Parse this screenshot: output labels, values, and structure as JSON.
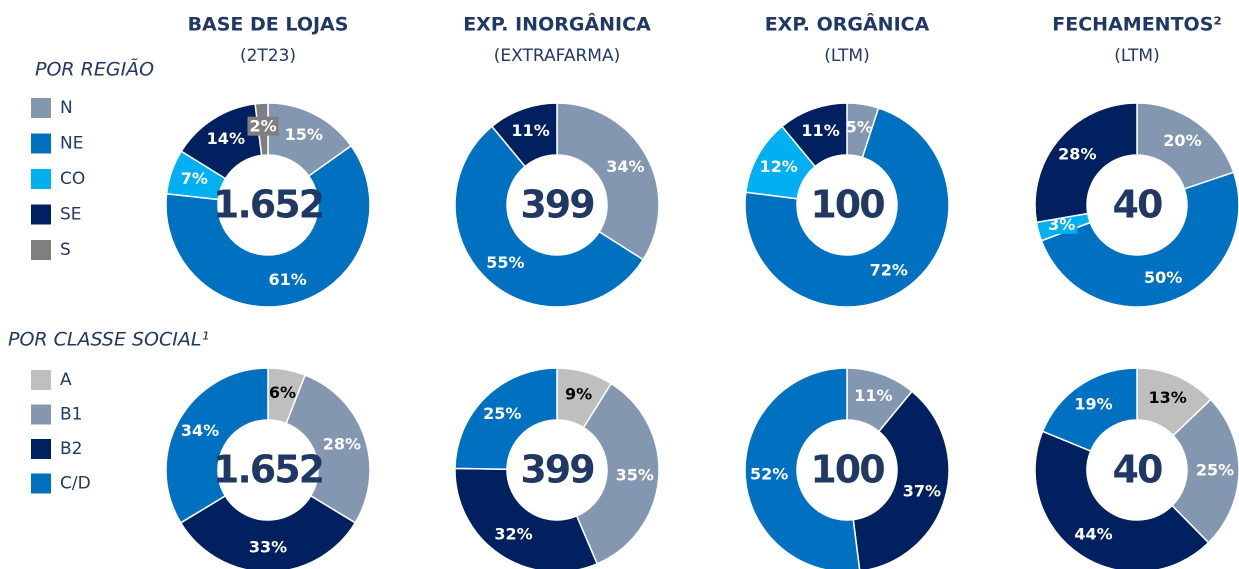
{
  "columns": [
    {
      "title": "BASE DE LOJAS",
      "subtitle": "(2T23)"
    },
    {
      "title": "EXP. INORGÂNICA",
      "subtitle": "(EXTRAFARMA)"
    },
    {
      "title": "EXP. ORGÂNICA",
      "subtitle": "(LTM)"
    },
    {
      "title": "FECHAMENTOS²",
      "subtitle": "(LTM)"
    }
  ],
  "rows": [
    {
      "title": "POR REGIÃO",
      "legend": [
        {
          "name": "N",
          "color": "#8497b0"
        },
        {
          "name": "NE",
          "color": "#0070c0"
        },
        {
          "name": "CO",
          "color": "#00b0f0"
        },
        {
          "name": "SE",
          "color": "#002060"
        },
        {
          "name": "S",
          "color": "#7f7f7f"
        }
      ]
    },
    {
      "title": "POR CLASSE SOCIAL¹",
      "legend": [
        {
          "name": "A",
          "color": "#bfbfbf"
        },
        {
          "name": "B1",
          "color": "#8497b0"
        },
        {
          "name": "B2",
          "color": "#002060"
        },
        {
          "name": "C/D",
          "color": "#0070c0"
        }
      ]
    }
  ],
  "chart_data": [
    {
      "type": "pie",
      "donut": true,
      "center_label": "1.652",
      "values": [
        15,
        61,
        7,
        14,
        2
      ],
      "value_labels": [
        "15%",
        "61%",
        "7%",
        "14%",
        "2%"
      ]
    },
    {
      "type": "pie",
      "donut": true,
      "center_label": "399",
      "values": [
        34,
        55,
        null,
        11,
        null
      ],
      "value_labels": [
        "34%",
        "55%",
        null,
        "11%",
        null
      ]
    },
    {
      "type": "pie",
      "donut": true,
      "center_label": "100",
      "values": [
        5,
        72,
        12,
        11,
        null
      ],
      "value_labels": [
        "5%",
        "72%",
        "12%",
        "11%",
        null
      ]
    },
    {
      "type": "pie",
      "donut": true,
      "center_label": "40",
      "values": [
        20,
        50,
        3,
        28,
        null
      ],
      "value_labels": [
        "20%",
        "50%",
        "3%",
        "28%",
        null
      ]
    },
    {
      "type": "pie",
      "donut": true,
      "center_label": "1.652",
      "values": [
        6,
        28,
        33,
        34
      ],
      "value_labels": [
        "6%",
        "28%",
        "33%",
        "34%"
      ]
    },
    {
      "type": "pie",
      "donut": true,
      "center_label": "399",
      "values": [
        9,
        35,
        32,
        25
      ],
      "value_labels": [
        "9%",
        "35%",
        "32%",
        "25%"
      ]
    },
    {
      "type": "pie",
      "donut": true,
      "center_label": "100",
      "values": [
        null,
        11,
        37,
        52
      ],
      "value_labels": [
        null,
        "11%",
        "37%",
        "52%"
      ]
    },
    {
      "type": "pie",
      "donut": true,
      "center_label": "40",
      "values": [
        13,
        25,
        44,
        19
      ],
      "value_labels": [
        "13%",
        "25%",
        "44%",
        "19%"
      ]
    }
  ]
}
